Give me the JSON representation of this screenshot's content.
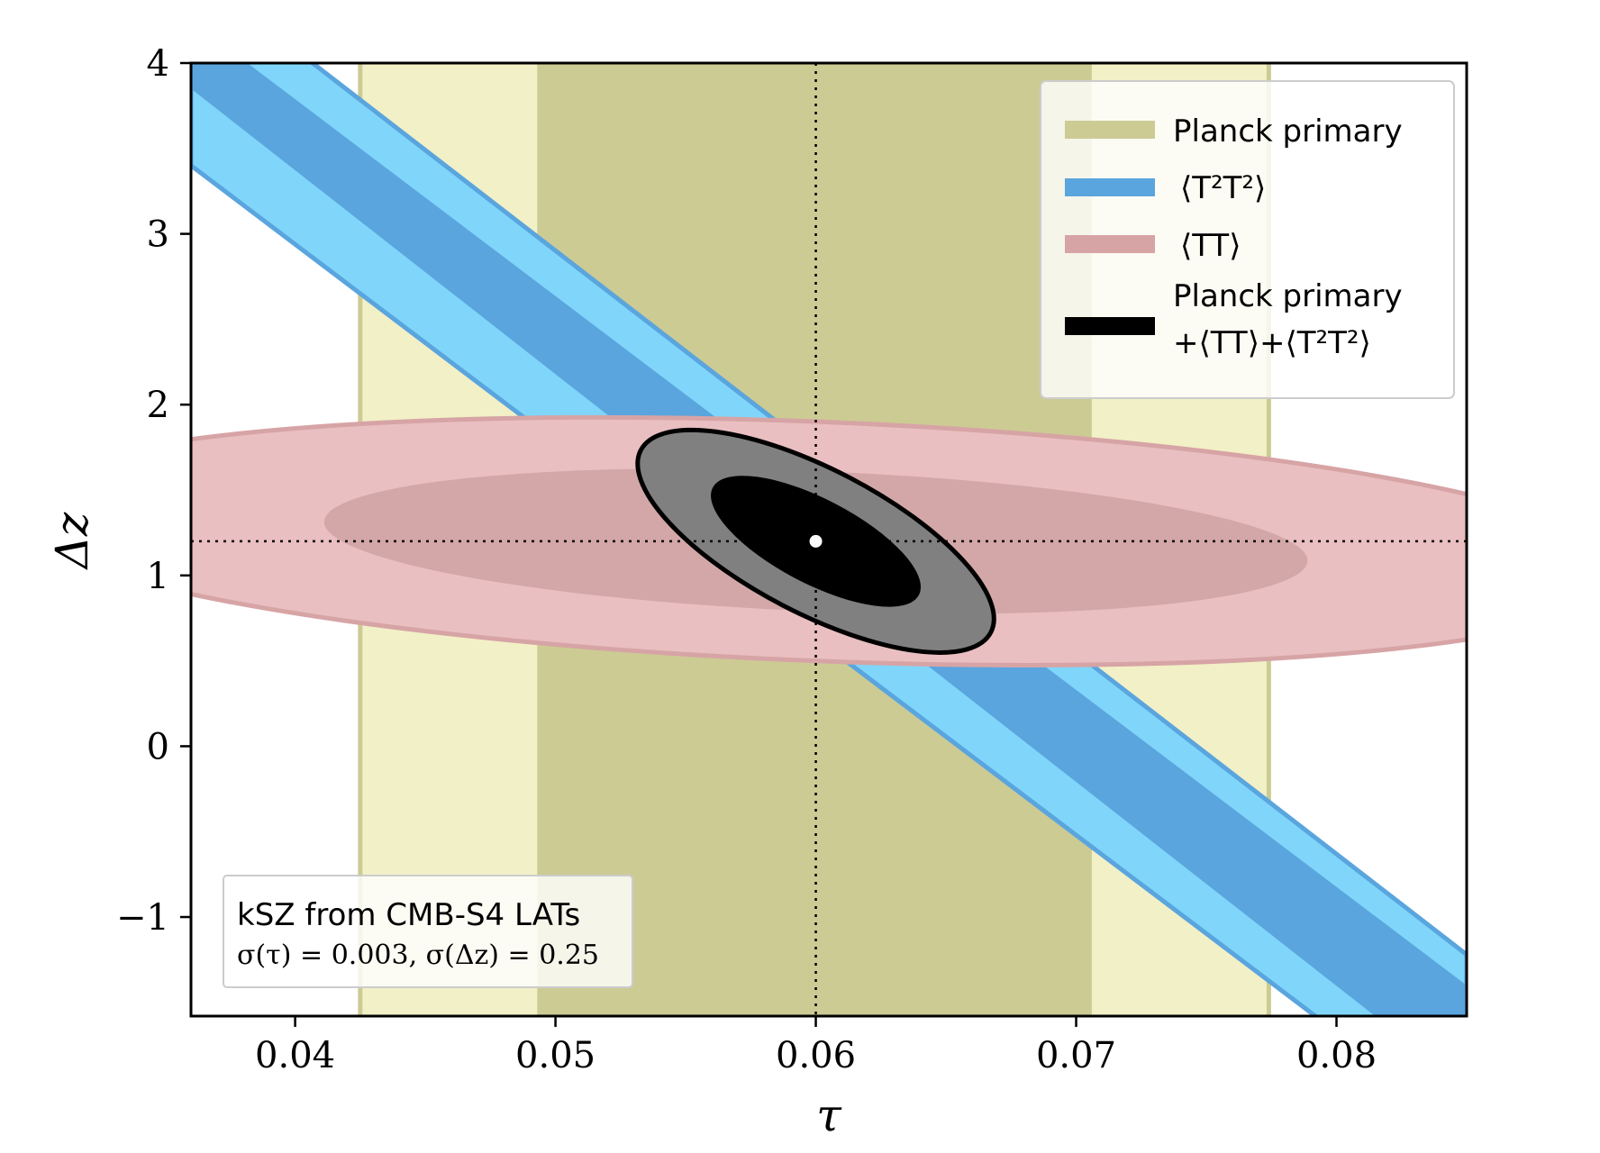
{
  "chart_data": {
    "type": "scatter",
    "title": "",
    "xlabel": "τ",
    "ylabel": "Δz",
    "xlim": [
      0.036,
      0.085
    ],
    "ylim": [
      -1.58,
      4.0
    ],
    "xticks": [
      0.04,
      0.05,
      0.06,
      0.07,
      0.08
    ],
    "xtick_labels": [
      "0.04",
      "0.05",
      "0.06",
      "0.07",
      "0.08"
    ],
    "yticks": [
      -1,
      0,
      1,
      2,
      3,
      4
    ],
    "ytick_labels": [
      "−1",
      "0",
      "1",
      "2",
      "3",
      "4"
    ],
    "fiducial": {
      "tau": 0.06,
      "dz": 1.2
    },
    "legend_position": "top-right",
    "legend": [
      {
        "label": "Planck primary",
        "color": "#cccb94"
      },
      {
        "label": "⟨T²T²⟩",
        "color": "#5aa5de"
      },
      {
        "label": "⟨TT⟩",
        "color": "#d7a4a6"
      },
      {
        "label": "Planck primary",
        "label2": "+⟨TT⟩+⟨T²T²⟩",
        "color": "#000000"
      }
    ],
    "series": [
      {
        "name": "Planck primary",
        "kind": "vertical-band",
        "center": 0.06,
        "bands": [
          {
            "level": "2σ",
            "range": [
              0.0425,
              0.0774
            ],
            "color": "#f2f0c6"
          },
          {
            "level": "1σ",
            "range": [
              0.0493,
              0.0706
            ],
            "color": "#cccb94"
          }
        ]
      },
      {
        "name": "⟨T²T²⟩",
        "kind": "diagonal-band",
        "upper_2sigma": [
          [
            0.036,
            4.55
          ],
          [
            0.085,
            -1.22
          ]
        ],
        "upper_1sigma": [
          [
            0.036,
            4.25
          ],
          [
            0.085,
            -1.4
          ]
        ],
        "lower_1sigma": [
          [
            0.036,
            3.85
          ],
          [
            0.085,
            -2.0
          ]
        ],
        "lower_2sigma": [
          [
            0.036,
            3.4
          ],
          [
            0.085,
            -2.25
          ]
        ],
        "colors": {
          "2σ": "#80d6fa",
          "1σ": "#5aa5de",
          "edge": "#5aa5de"
        }
      },
      {
        "name": "⟨TT⟩",
        "kind": "ellipse",
        "ellipses": [
          {
            "level": "2σ",
            "center": [
              0.06,
              1.2
            ],
            "semi_tau": 0.0315,
            "semi_dz": 0.7,
            "angle_deg": -2.3,
            "color": "#eabfc1",
            "edge": "#d7a4a6"
          },
          {
            "level": "1σ",
            "center": [
              0.06,
              1.2
            ],
            "semi_tau": 0.0189,
            "semi_dz": 0.41,
            "angle_deg": -2.3,
            "color": "#d3a7a8"
          }
        ]
      },
      {
        "name": "Planck primary +⟨TT⟩+⟨T²T²⟩",
        "kind": "ellipse",
        "ellipses": [
          {
            "level": "2σ",
            "center": [
              0.06,
              1.2
            ],
            "semi_major_px": 219,
            "semi_minor_px": 80,
            "angle_deg": 27.5,
            "color": "#808080",
            "edge": "#000000"
          },
          {
            "level": "1σ",
            "center": [
              0.06,
              1.2
            ],
            "semi_major_px": 129,
            "semi_minor_px": 47,
            "angle_deg": 27.5,
            "color": "#000000"
          }
        ]
      }
    ],
    "annotation": {
      "line1": "kSZ from CMB-S4 LATs",
      "line2": "σ(τ) = 0.003, σ(Δz) = 0.25",
      "position": "bottom-left"
    }
  }
}
